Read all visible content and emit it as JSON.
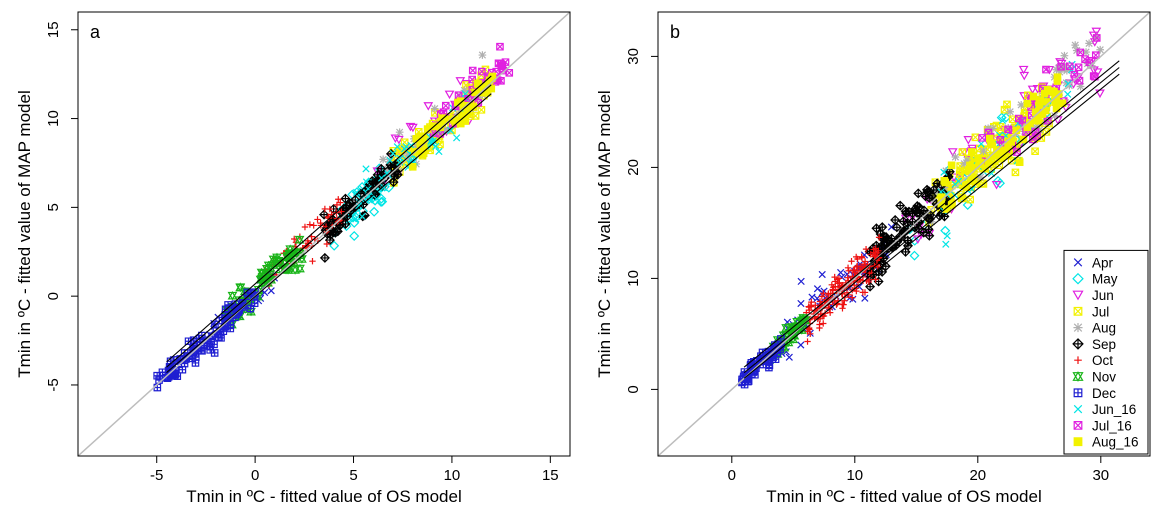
{
  "chart_data": [
    {
      "type": "scatter",
      "panel_label": "a",
      "xlabel": "Tmin in ºC - fitted value of OS model",
      "ylabel": "Tmin in ºC - fitted value of MAP model",
      "xlim": [
        -9,
        16
      ],
      "ylim": [
        -9,
        16
      ],
      "xticks": [
        "-5",
        "0",
        "5",
        "10",
        "15"
      ],
      "yticks": [
        "-5",
        "0",
        "5",
        "10",
        "15"
      ],
      "xtick_values": [
        -5,
        0,
        5,
        10,
        15
      ],
      "ytick_values": [
        -5,
        0,
        5,
        10,
        15
      ],
      "identity_line": {
        "from": [
          -9,
          -9
        ],
        "to": [
          16,
          16
        ],
        "color": "#bdbdbd"
      },
      "fit_lines": [
        {
          "from": [
            -4.5,
            -4.0
          ],
          "to": [
            12.0,
            11.9
          ]
        },
        {
          "from": [
            -4.5,
            -3.7
          ],
          "to": [
            12.0,
            12.4
          ]
        },
        {
          "from": [
            -4.5,
            -4.3
          ],
          "to": [
            12.0,
            11.4
          ]
        }
      ],
      "series": [
        {
          "name": "Apr",
          "marker": "x",
          "color": "#1f1fd1",
          "cluster": {
            "x": [
              -3,
              1
            ],
            "offset": 0.2,
            "spread": 0.4,
            "n": 30
          }
        },
        {
          "name": "May",
          "marker": "diamond",
          "color": "#00e5e5",
          "cluster": {
            "x": [
              4,
              7
            ],
            "offset": -0.2,
            "spread": 0.6,
            "n": 40
          }
        },
        {
          "name": "Jun",
          "marker": "triangle-down",
          "color": "#e020e0",
          "cluster": {
            "x": [
              6,
              11
            ],
            "offset": 0.6,
            "spread": 0.7,
            "n": 35
          }
        },
        {
          "name": "Jul",
          "marker": "square-x",
          "color": "#f2f200",
          "cluster": {
            "x": [
              7,
              12
            ],
            "offset": 0.1,
            "spread": 0.5,
            "n": 90
          }
        },
        {
          "name": "Aug",
          "marker": "asterisk",
          "color": "#b0b0b0",
          "cluster": {
            "x": [
              6,
              12
            ],
            "offset": 0.3,
            "spread": 0.6,
            "n": 35
          }
        },
        {
          "name": "Sep",
          "marker": "diamond-plus",
          "color": "#000000",
          "cluster": {
            "x": [
              3.5,
              7.5
            ],
            "offset": 0.0,
            "spread": 0.4,
            "n": 70
          }
        },
        {
          "name": "Oct",
          "marker": "plus",
          "color": "#ee1111",
          "cluster": {
            "x": [
              0.5,
              4.5
            ],
            "offset": 0.5,
            "spread": 0.5,
            "n": 55
          }
        },
        {
          "name": "Nov",
          "marker": "hourglass",
          "color": "#18b418",
          "cluster": {
            "x": [
              -1.5,
              2.5
            ],
            "offset": 0.3,
            "spread": 0.4,
            "n": 70
          }
        },
        {
          "name": "Dec",
          "marker": "square-plus",
          "color": "#1f1fd1",
          "cluster": {
            "x": [
              -5,
              0
            ],
            "offset": 0.0,
            "spread": 0.4,
            "n": 110
          }
        },
        {
          "name": "Jun_16",
          "marker": "x",
          "color": "#00e5e5",
          "cluster": {
            "x": [
              5,
              11
            ],
            "offset": 0.0,
            "spread": 0.5,
            "n": 60
          }
        },
        {
          "name": "Jul_16",
          "marker": "square-x",
          "color": "#e020e0",
          "cluster": {
            "x": [
              9,
              13
            ],
            "offset": 0.4,
            "spread": 0.5,
            "n": 45
          }
        },
        {
          "name": "Aug_16",
          "marker": "square",
          "color": "#f2f200",
          "cluster": {
            "x": [
              8,
              12.5
            ],
            "offset": 0.0,
            "spread": 0.4,
            "n": 45
          }
        }
      ]
    },
    {
      "type": "scatter",
      "panel_label": "b",
      "xlabel": "Tmin in ºC - fitted value of OS model",
      "ylabel": "Tmin in ºC - fitted value of MAP model",
      "xlim": [
        -6,
        34
      ],
      "ylim": [
        -6,
        34
      ],
      "xticks": [
        "0",
        "10",
        "20",
        "30"
      ],
      "yticks": [
        "0",
        "10",
        "20",
        "30"
      ],
      "xtick_values": [
        0,
        10,
        20,
        30
      ],
      "ytick_values": [
        0,
        10,
        20,
        30
      ],
      "identity_line": {
        "from": [
          -6,
          -6
        ],
        "to": [
          34,
          34
        ],
        "color": "#bdbdbd"
      },
      "fit_lines": [
        {
          "from": [
            1.0,
            1.5
          ],
          "to": [
            31.5,
            29.0
          ]
        },
        {
          "from": [
            1.0,
            2.0
          ],
          "to": [
            31.5,
            29.6
          ]
        },
        {
          "from": [
            1.0,
            1.0
          ],
          "to": [
            31.5,
            28.4
          ]
        }
      ],
      "legend_position": "right",
      "series": [
        {
          "name": "Apr",
          "marker": "x",
          "color": "#1f1fd1",
          "cluster": {
            "x": [
              4,
              13
            ],
            "offset": 0.3,
            "spread": 1.2,
            "n": 60
          }
        },
        {
          "name": "May",
          "marker": "diamond",
          "color": "#00e5e5",
          "cluster": {
            "x": [
              14,
              24
            ],
            "offset": -0.5,
            "spread": 1.3,
            "n": 20
          }
        },
        {
          "name": "Jun",
          "marker": "triangle-down",
          "color": "#e020e0",
          "cluster": {
            "x": [
              14,
              30
            ],
            "offset": 0.5,
            "spread": 1.8,
            "n": 55
          }
        },
        {
          "name": "Jul",
          "marker": "square-x",
          "color": "#f2f200",
          "cluster": {
            "x": [
              16,
              26
            ],
            "offset": 0.2,
            "spread": 1.3,
            "n": 160
          }
        },
        {
          "name": "Aug",
          "marker": "asterisk",
          "color": "#b0b0b0",
          "cluster": {
            "x": [
              16,
              30
            ],
            "offset": 0.4,
            "spread": 1.5,
            "n": 60
          }
        },
        {
          "name": "Sep",
          "marker": "diamond-plus",
          "color": "#000000",
          "cluster": {
            "x": [
              11,
              18
            ],
            "offset": 0.2,
            "spread": 1.2,
            "n": 110
          }
        },
        {
          "name": "Oct",
          "marker": "plus",
          "color": "#ee1111",
          "cluster": {
            "x": [
              6,
              12
            ],
            "offset": 0.0,
            "spread": 0.8,
            "n": 170
          }
        },
        {
          "name": "Nov",
          "marker": "hourglass",
          "color": "#18b418",
          "cluster": {
            "x": [
              3,
              6
            ],
            "offset": 0.0,
            "spread": 0.5,
            "n": 40
          }
        },
        {
          "name": "Dec",
          "marker": "square-plus",
          "color": "#1f1fd1",
          "cluster": {
            "x": [
              0.8,
              4
            ],
            "offset": 0.0,
            "spread": 0.4,
            "n": 60
          }
        },
        {
          "name": "Jun_16",
          "marker": "x",
          "color": "#00e5e5",
          "cluster": {
            "x": [
              17,
              29
            ],
            "offset": 0.0,
            "spread": 1.3,
            "n": 40
          }
        },
        {
          "name": "Jul_16",
          "marker": "square-x",
          "color": "#e020e0",
          "cluster": {
            "x": [
              20,
              30
            ],
            "offset": 0.8,
            "spread": 1.3,
            "n": 45
          }
        },
        {
          "name": "Aug_16",
          "marker": "square",
          "color": "#f2f200",
          "cluster": {
            "x": [
              17,
              27
            ],
            "offset": 0.0,
            "spread": 1.0,
            "n": 55
          }
        }
      ]
    }
  ]
}
